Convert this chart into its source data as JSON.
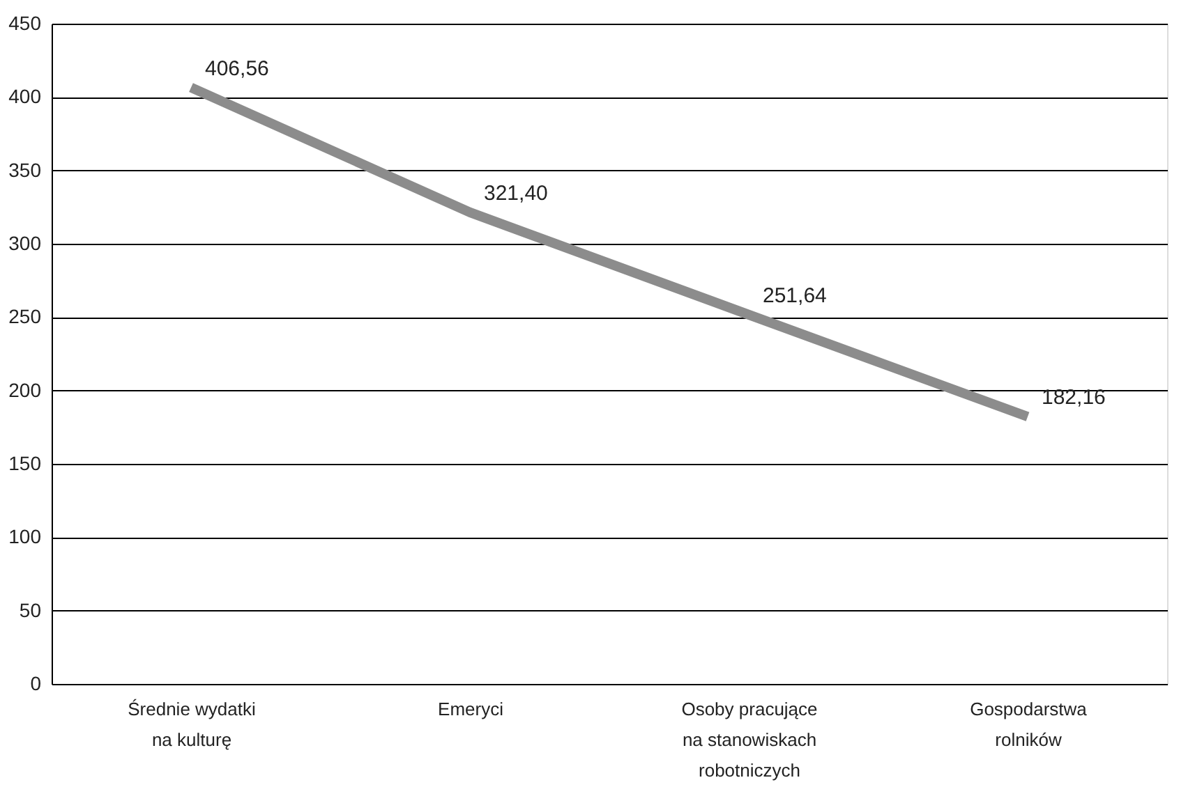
{
  "chart_data": {
    "type": "line",
    "categories": [
      "Średnie wydatki na kulturę",
      "Emeryci",
      "Osoby pracujące na stanowiskach robotniczych",
      "Gospodarstwa rolników"
    ],
    "series": [
      {
        "color": "#8c8c8c",
        "values": [
          406.56,
          321.4,
          251.64,
          182.16
        ],
        "value_labels": [
          "406,56",
          "321,40",
          "251,64",
          "182,16"
        ]
      }
    ],
    "ylim": [
      0,
      450
    ],
    "yticks": [
      0,
      50,
      100,
      150,
      200,
      250,
      300,
      350,
      400,
      450
    ],
    "grid": "y",
    "marker": "none",
    "line_style": "solid"
  }
}
